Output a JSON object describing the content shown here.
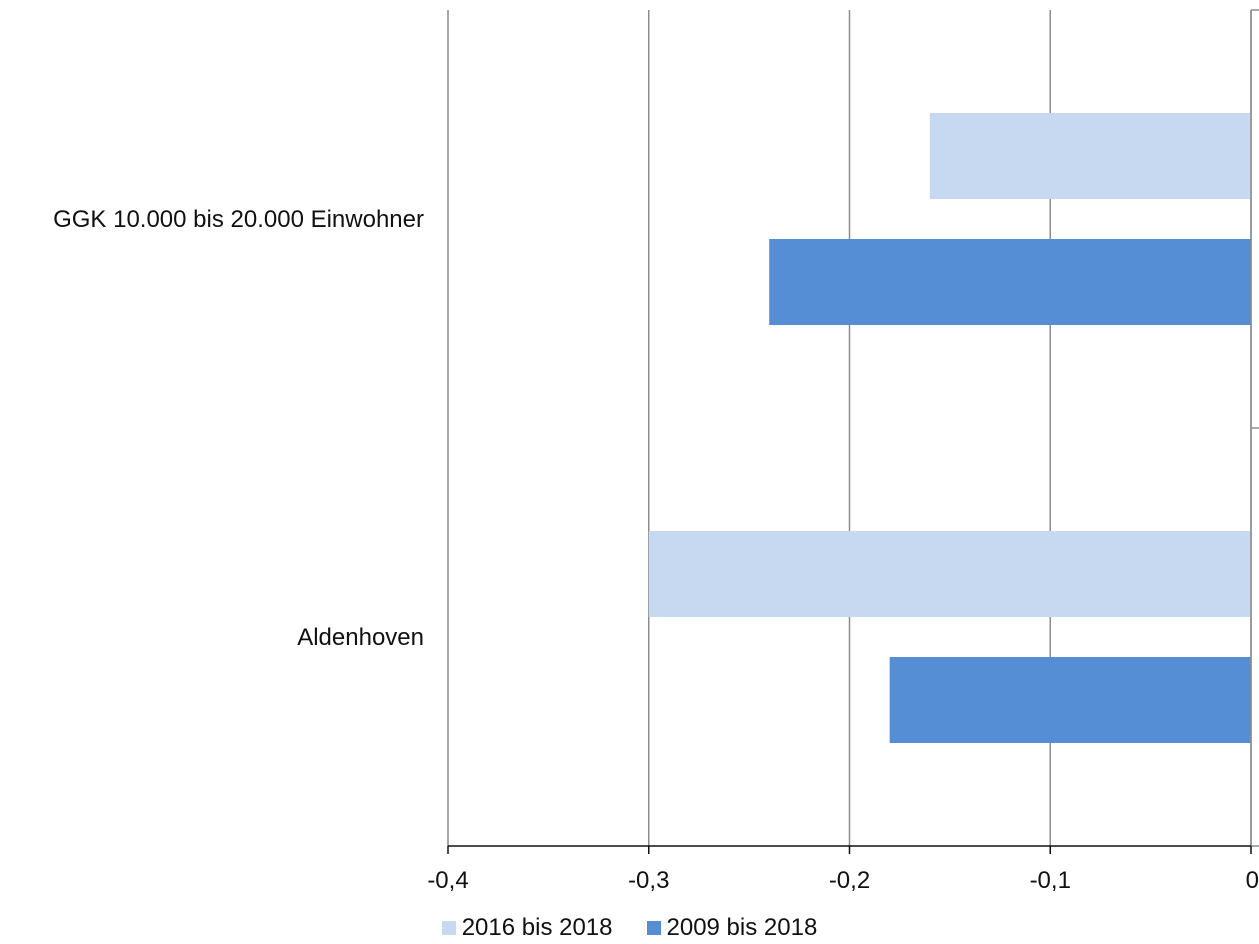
{
  "chart_data": {
    "type": "bar",
    "orientation": "horizontal",
    "categories": [
      "GGK 10.000 bis 20.000 Einwohner",
      "Aldenhoven"
    ],
    "series": [
      {
        "name": "2016 bis 2018",
        "color": "#c6d9f1",
        "values": [
          -0.16,
          -0.3
        ]
      },
      {
        "name": "2009 bis 2018",
        "color": "#558ed5",
        "values": [
          -0.24,
          -0.18
        ]
      }
    ],
    "xlim": [
      -0.4,
      0
    ],
    "x_ticks": [
      -0.4,
      -0.3,
      -0.2,
      -0.1,
      0
    ],
    "x_tick_labels": [
      "-0,4",
      "-0,3",
      "-0,2",
      "-0,1",
      "0"
    ],
    "grid": "vertical",
    "legend_position": "bottom"
  }
}
